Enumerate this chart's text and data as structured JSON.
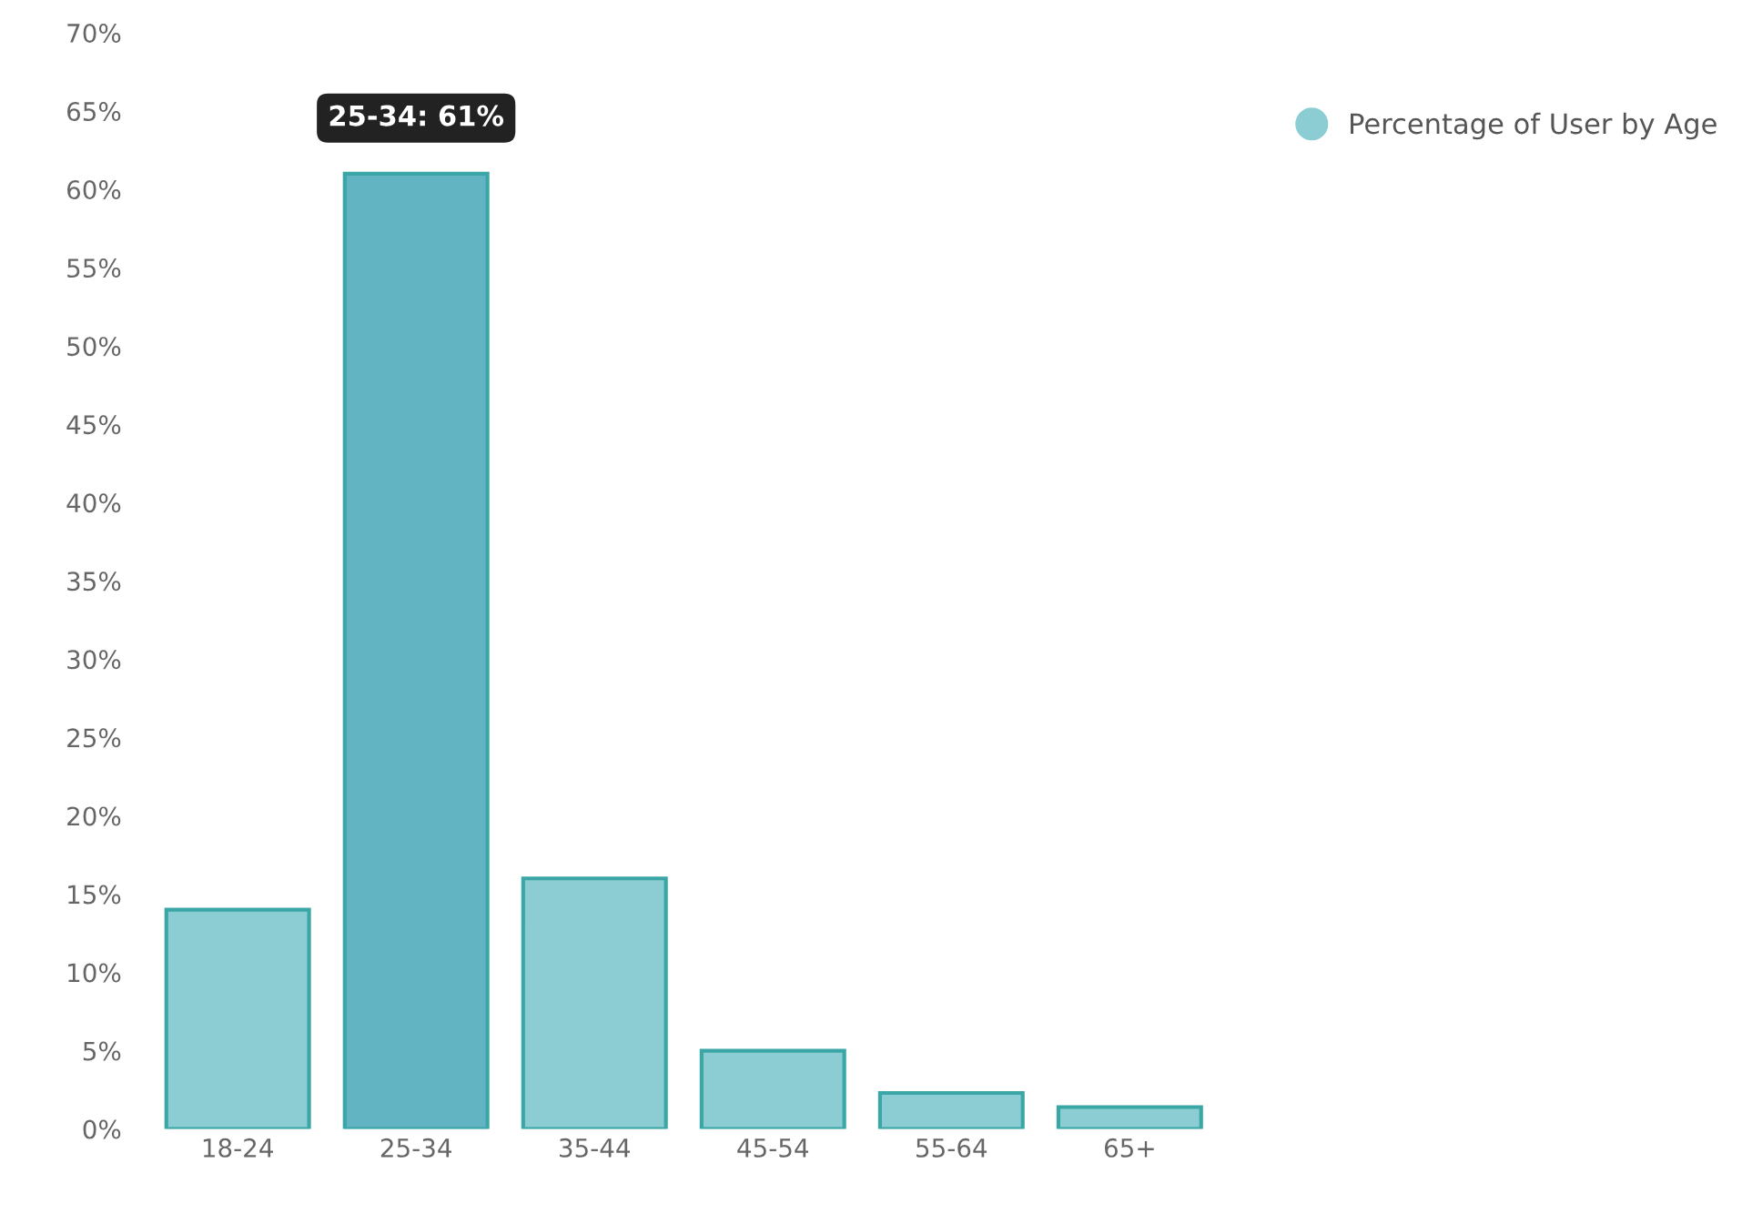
{
  "chart_data": {
    "type": "bar",
    "categories": [
      "18-24",
      "25-34",
      "35-44",
      "45-54",
      "55-64",
      "65+"
    ],
    "series": [
      {
        "name": "Percentage of User by Age",
        "color": "#8ccdd3",
        "colors": [
          "#8ccdd3",
          "#62b4c2",
          "#8ccdd3",
          "#8ccdd3",
          "#8ccdd3",
          "#8ccdd3"
        ],
        "values": [
          14,
          61,
          16,
          5,
          2.3,
          1.4
        ]
      }
    ],
    "ylim": [
      0,
      70
    ],
    "yticks": [
      {
        "value": 0,
        "label": "0%"
      },
      {
        "value": 5,
        "label": "5%"
      },
      {
        "value": 10,
        "label": "10%"
      },
      {
        "value": 15,
        "label": "15%"
      },
      {
        "value": 20,
        "label": "20%"
      },
      {
        "value": 25,
        "label": "25%"
      },
      {
        "value": 30,
        "label": "30%"
      },
      {
        "value": 35,
        "label": "35%"
      },
      {
        "value": 40,
        "label": "40%"
      },
      {
        "value": 45,
        "label": "45%"
      },
      {
        "value": 50,
        "label": "50%"
      },
      {
        "value": 55,
        "label": "55%"
      },
      {
        "value": 60,
        "label": "60%"
      },
      {
        "value": 65,
        "label": "65%"
      },
      {
        "value": 70,
        "label": "70%"
      }
    ],
    "annotations": [
      {
        "text": "25-34: 61%",
        "x": "25-34",
        "y": 61
      }
    ],
    "grid": false,
    "legend": "top right"
  }
}
